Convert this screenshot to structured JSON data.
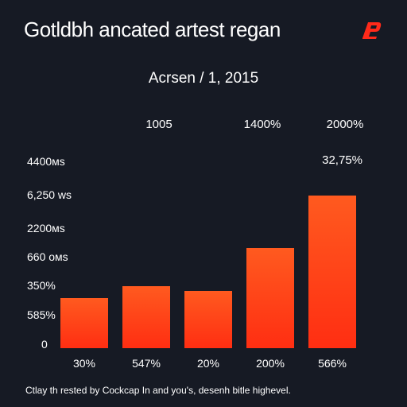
{
  "title": "Gotldbh ancated artest regan",
  "subtitle": "Acrsen / 1, 2015",
  "logo_icon": "brand-logo-icon",
  "footnote": "Ctlay th rested by Cockcap In and you's, desenh bitle highevel.",
  "top_labels": [
    "1005",
    "1400%",
    "2000%"
  ],
  "right_label": "32,75%",
  "y_labels": [
    "4400мs",
    "6,250 ws",
    "2200мs",
    "660 oмs",
    "350%",
    "585%",
    "0"
  ],
  "colors": {
    "background": "#161a24",
    "bar_top": "#ff5a1f",
    "bar_bottom": "#ff2e12",
    "logo": "#ff2a1a"
  },
  "chart_data": {
    "type": "bar",
    "title": "Gotldbh ancated artest regan",
    "subtitle": "Acrsen / 1, 2015",
    "categories": [
      "30%",
      "547%",
      "20%",
      "200%",
      "566%"
    ],
    "values": [
      21,
      26,
      24,
      42,
      64
    ],
    "ylim": [
      0,
      100
    ],
    "grid": false,
    "legend": "none"
  }
}
